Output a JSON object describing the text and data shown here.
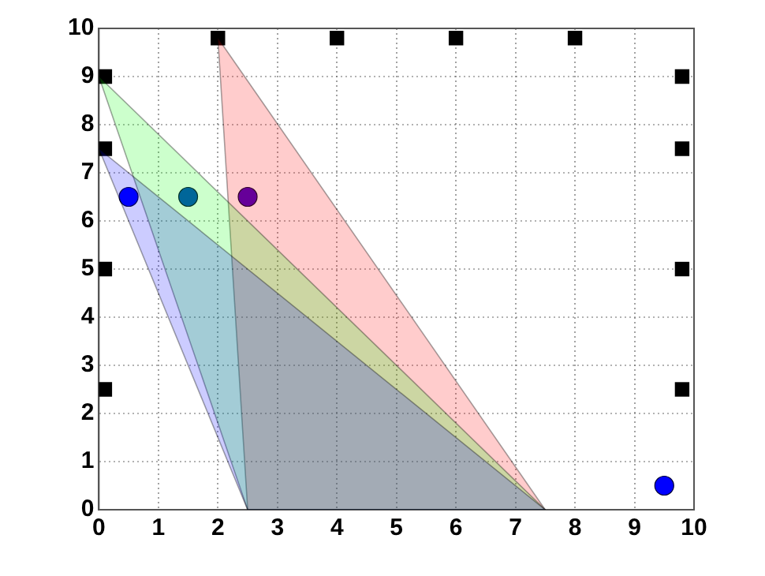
{
  "chart_data": {
    "type": "scatter",
    "xlim": [
      0,
      10
    ],
    "ylim": [
      0,
      10
    ],
    "xticks": [
      0,
      1,
      2,
      3,
      4,
      5,
      6,
      7,
      8,
      9,
      10
    ],
    "yticks": [
      0,
      1,
      2,
      3,
      4,
      5,
      6,
      7,
      8,
      9,
      10
    ],
    "grid": true,
    "legend": false,
    "series": [
      {
        "type": "area",
        "color": "#0000ff",
        "x": [
          0,
          2.5,
          7.5,
          0
        ],
        "values": [
          7.5,
          0,
          0,
          7.5
        ]
      },
      {
        "type": "area",
        "color": "#00ff00",
        "x": [
          0,
          2.5,
          7.5,
          0
        ],
        "values": [
          9,
          0,
          0,
          9
        ]
      },
      {
        "type": "area",
        "color": "#ff0000",
        "x": [
          2,
          2.5,
          7.5,
          2
        ],
        "values": [
          9.8,
          0,
          0,
          9.8
        ]
      },
      {
        "type": "scatter",
        "marker": "square",
        "color": "#000000",
        "x": [
          2,
          4,
          6,
          8,
          0.1,
          0.1,
          0.1,
          0.1,
          9.8,
          9.8,
          9.8,
          9.8
        ],
        "values": [
          9.8,
          9.8,
          9.8,
          9.8,
          9,
          7.5,
          5,
          2.5,
          9,
          7.5,
          5,
          2.5
        ]
      },
      {
        "type": "scatter",
        "marker": "circle",
        "colors": [
          "#0000ff",
          "#0040c0",
          "#4000c0",
          "#0000ff"
        ],
        "x": [
          0.5,
          1.5,
          2.5,
          9.5
        ],
        "values": [
          6.5,
          6.5,
          6.5,
          0.5
        ]
      }
    ]
  }
}
